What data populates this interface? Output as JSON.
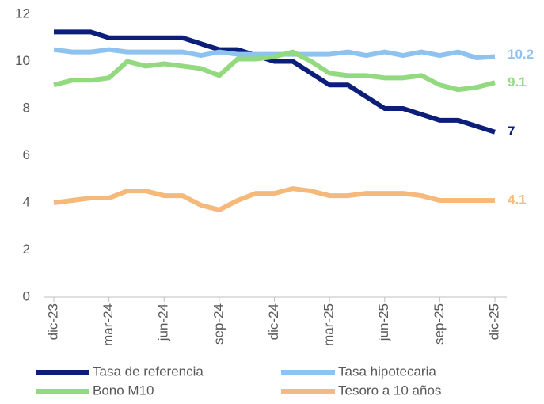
{
  "chart_data": {
    "type": "line",
    "categories": [
      "dic-23",
      null,
      null,
      "mar-24",
      null,
      null,
      "jun-24",
      null,
      null,
      "sep-24",
      null,
      null,
      "dic-24",
      null,
      null,
      "mar-25",
      null,
      null,
      "jun-25",
      null,
      null,
      "sep-25",
      null,
      null,
      "dic-25"
    ],
    "series": [
      {
        "name": "Tasa de referencia",
        "color": "#0b1f7a",
        "values": [
          11.25,
          11.25,
          11.25,
          11.0,
          11.0,
          11.0,
          11.0,
          11.0,
          10.75,
          10.5,
          10.5,
          10.25,
          10.0,
          10.0,
          9.5,
          9.0,
          9.0,
          8.5,
          8.0,
          8.0,
          7.75,
          7.5,
          7.5,
          7.25,
          7
        ]
      },
      {
        "name": "Tasa hipotecaria",
        "color": "#8fc3ef",
        "values": [
          10.5,
          10.4,
          10.4,
          10.5,
          10.4,
          10.4,
          10.4,
          10.4,
          10.25,
          10.4,
          10.3,
          10.3,
          10.3,
          10.3,
          10.3,
          10.3,
          10.4,
          10.25,
          10.4,
          10.25,
          10.4,
          10.25,
          10.4,
          10.15,
          10.2
        ]
      },
      {
        "name": "Bono M10",
        "color": "#92d97f",
        "values": [
          9.0,
          9.2,
          9.2,
          9.3,
          10.0,
          9.8,
          9.9,
          9.8,
          9.7,
          9.4,
          10.1,
          10.1,
          10.2,
          10.4,
          10.0,
          9.5,
          9.4,
          9.4,
          9.3,
          9.3,
          9.4,
          9.0,
          8.8,
          8.9,
          9.1
        ]
      },
      {
        "name": "Tesoro a 10 años",
        "color": "#f6b97c",
        "values": [
          4.0,
          4.1,
          4.2,
          4.2,
          4.5,
          4.5,
          4.3,
          4.3,
          3.9,
          3.7,
          4.1,
          4.4,
          4.4,
          4.6,
          4.5,
          4.3,
          4.3,
          4.4,
          4.4,
          4.4,
          4.3,
          4.1,
          4.1,
          4.1,
          4.1
        ]
      }
    ],
    "ylim": [
      0,
      12
    ],
    "yticks": [
      0,
      2,
      4,
      6,
      8,
      10,
      12
    ],
    "grid": false,
    "end_labels": true,
    "legend": "bottom"
  }
}
